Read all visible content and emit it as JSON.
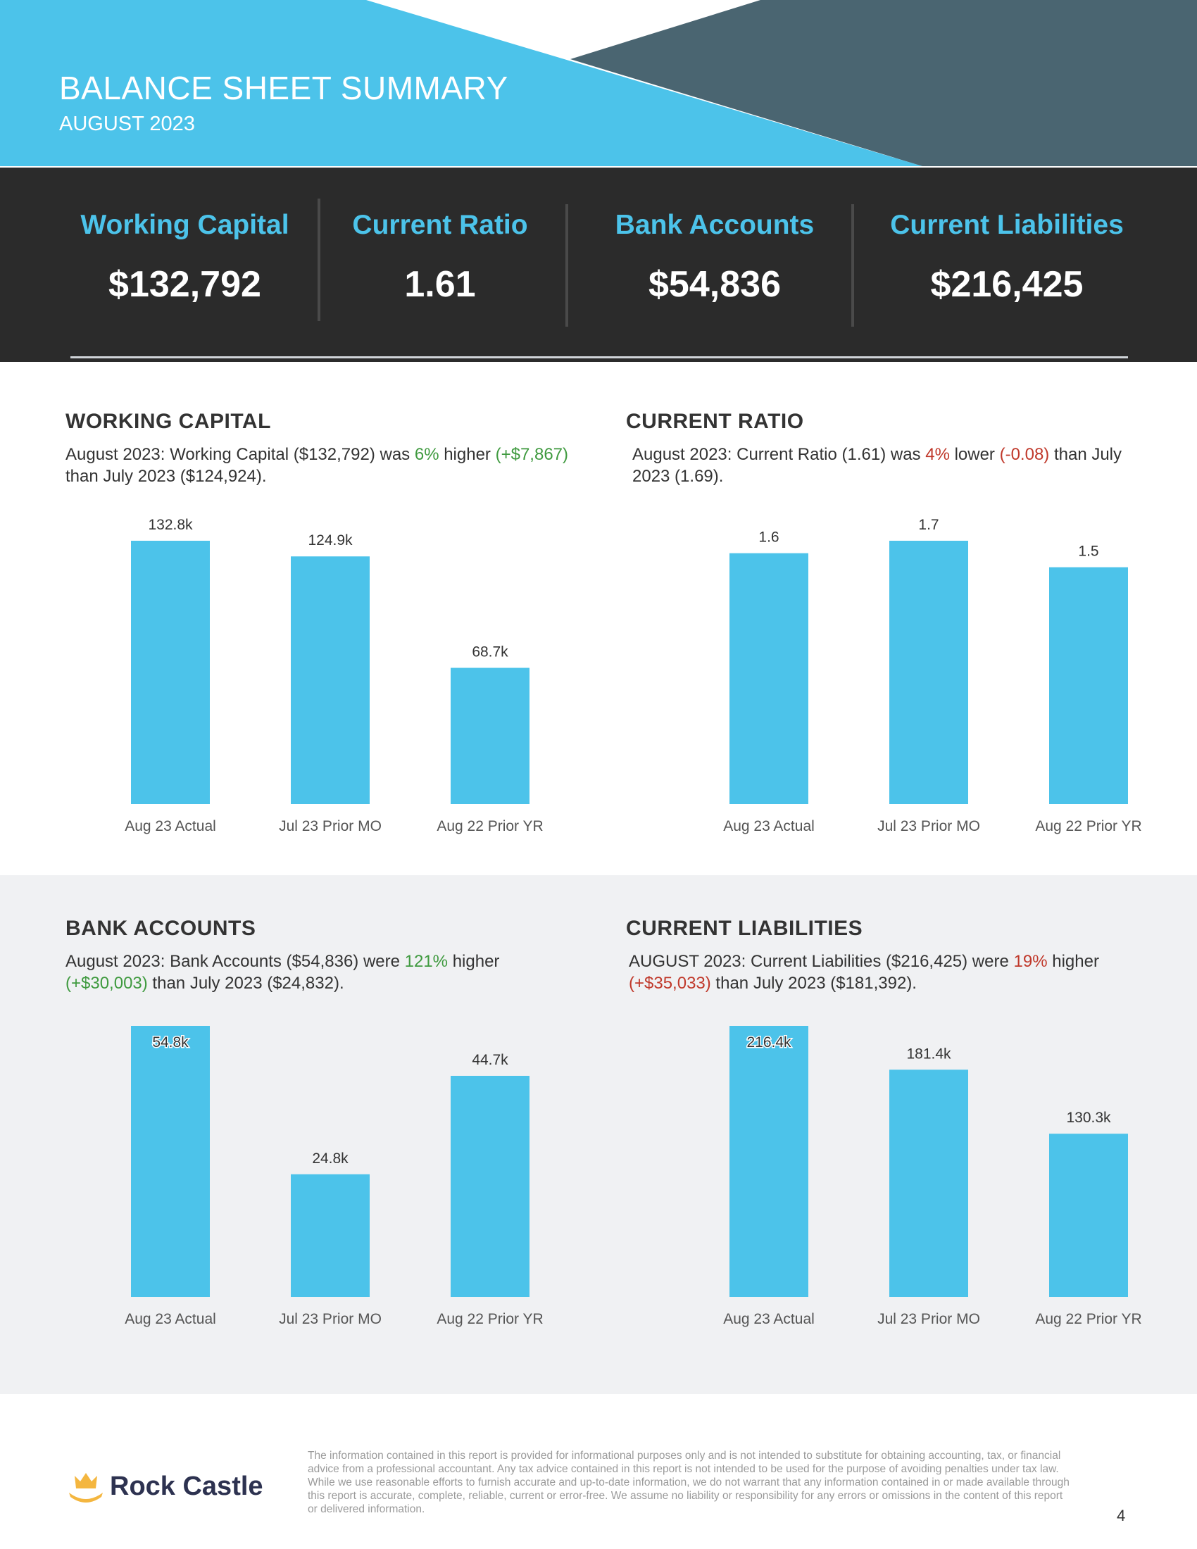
{
  "header": {
    "title": "BALANCE SHEET SUMMARY",
    "subtitle": "AUGUST 2023"
  },
  "kpis": [
    {
      "label": "Working Capital",
      "value": "$132,792"
    },
    {
      "label": "Current Ratio",
      "value": "1.61"
    },
    {
      "label": "Bank Accounts",
      "value": "$54,836"
    },
    {
      "label": "Current Liabilities",
      "value": "$216,425"
    }
  ],
  "colors": {
    "accent": "#4cc3ea",
    "header_dark": "#4a6571",
    "band": "#2b2b2b",
    "positive": "#3f9a3f",
    "negative": "#c0392b",
    "bar": "#4cc3ea"
  },
  "panels": [
    {
      "title": "WORKING CAPITAL",
      "desc": {
        "pre": "August 2023: Working Capital ($132,792) was ",
        "pct": "6%",
        "pct_tone": "pos",
        "mid": " higher ",
        "delta": "(+$7,867)",
        "delta_tone": "pos",
        "post": " than July 2023 ($124,924)."
      }
    },
    {
      "title": "CURRENT RATIO",
      "desc": {
        "pre": "August 2023: Current Ratio (1.61) was ",
        "pct": "4%",
        "pct_tone": "neg",
        "mid": " lower ",
        "delta": "(-0.08)",
        "delta_tone": "neg",
        "post": " than July 2023 (1.69)."
      }
    },
    {
      "title": "BANK ACCOUNTS",
      "desc": {
        "pre": "August 2023: Bank Accounts ($54,836) were ",
        "pct": "121%",
        "pct_tone": "pos",
        "mid": " higher ",
        "delta": "(+$30,003)",
        "delta_tone": "pos",
        "post": " than July 2023 ($24,832)."
      }
    },
    {
      "title": "CURRENT LIABILITIES",
      "desc": {
        "pre": "AUGUST 2023: Current Liabilities ($216,425) were ",
        "pct": "19%",
        "pct_tone": "neg",
        "mid": " higher ",
        "delta": "(+$35,033)",
        "delta_tone": "neg",
        "post": " than July 2023 ($181,392)."
      }
    }
  ],
  "chart_data": [
    {
      "type": "bar",
      "categories": [
        "Aug 23 Actual",
        "Jul 23 Prior MO",
        "Aug 22 Prior YR"
      ],
      "values": [
        132.8,
        124.9,
        68.7
      ],
      "labels": [
        "132.8k",
        "124.9k",
        "68.7k"
      ],
      "ylim": [
        0,
        132.8
      ]
    },
    {
      "type": "bar",
      "categories": [
        "Aug 23 Actual",
        "Jul 23 Prior MO",
        "Aug 22 Prior YR"
      ],
      "values": [
        1.61,
        1.69,
        1.52
      ],
      "labels": [
        "1.6",
        "1.7",
        "1.5"
      ],
      "ylim": [
        0,
        1.69
      ]
    },
    {
      "type": "bar",
      "categories": [
        "Aug 23 Actual",
        "Jul 23 Prior MO",
        "Aug 22 Prior YR"
      ],
      "values": [
        54.8,
        24.8,
        44.7
      ],
      "labels": [
        "54.8k",
        "24.8k",
        "44.7k"
      ],
      "ylim": [
        0,
        54.8
      ]
    },
    {
      "type": "bar",
      "categories": [
        "Aug 23 Actual",
        "Jul 23 Prior MO",
        "Aug 22 Prior YR"
      ],
      "values": [
        216.4,
        181.4,
        130.3
      ],
      "labels": [
        "216.4k",
        "181.4k",
        "130.3k"
      ],
      "ylim": [
        0,
        216.4
      ]
    }
  ],
  "footer": {
    "logo_text": "Rock Castle",
    "disclaimer": "The information contained in this report is provided for informational purposes only and is not intended to substitute for obtaining accounting, tax, or financial advice from a professional accountant. Any tax advice contained in this report is not intended to be used for the purpose of avoiding penalties under tax law. While we use reasonable efforts to furnish accurate and up-to-date information, we do not warrant that any information contained in or made available through this report is accurate, complete, reliable, current or error-free. We assume no liability or responsibility for any errors or omissions in the content of this report or delivered information.",
    "page_number": "4"
  }
}
